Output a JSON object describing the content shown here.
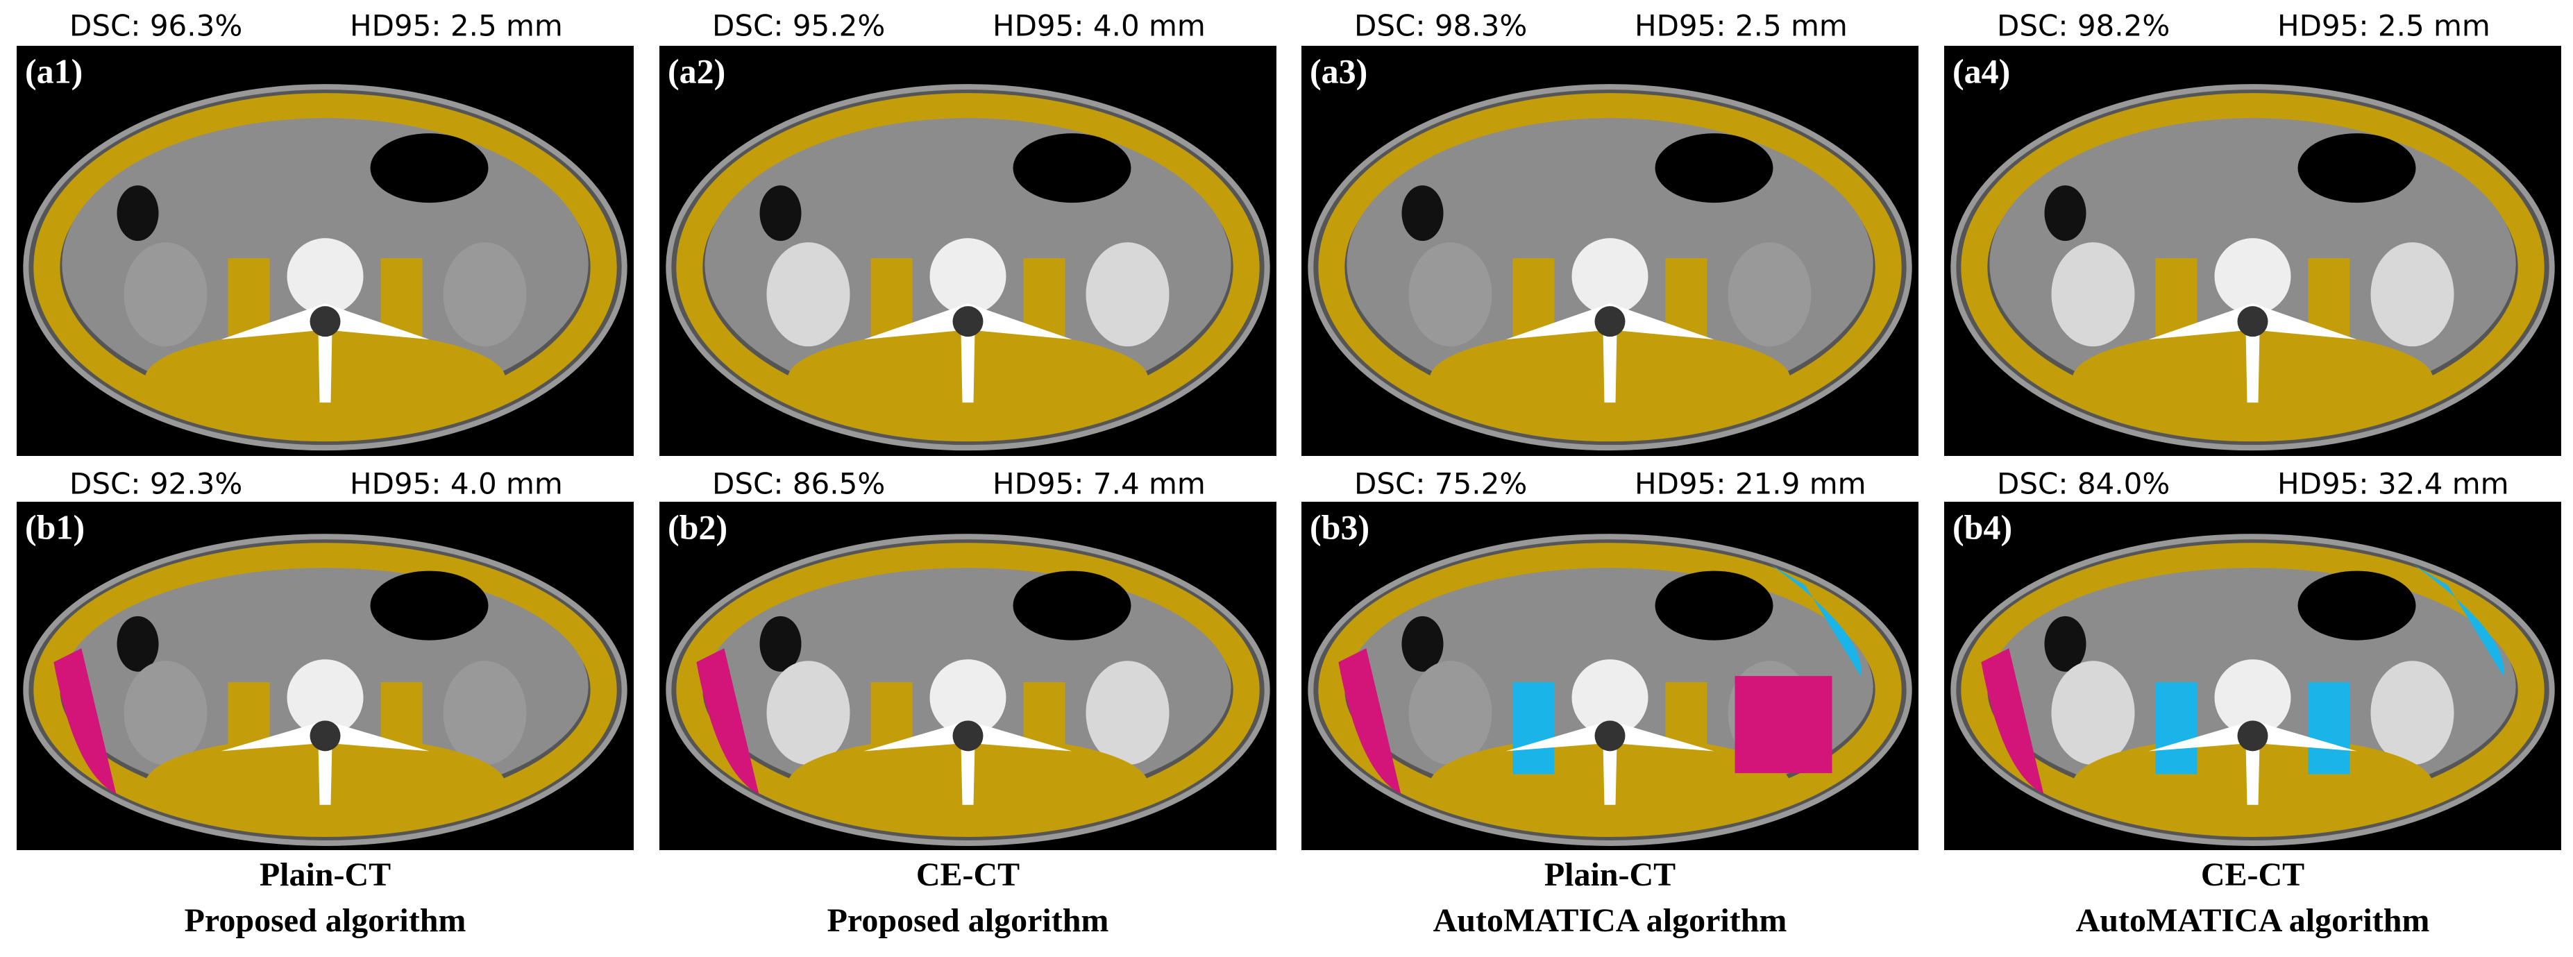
{
  "panels": [
    {
      "label": "(a1)",
      "dsc": "DSC: 96.3%",
      "hd": "HD95: 2.5 mm"
    },
    {
      "label": "(a2)",
      "dsc": "DSC: 95.2%",
      "hd": "HD95: 4.0 mm"
    },
    {
      "label": "(a3)",
      "dsc": "DSC: 98.3%",
      "hd": "HD95: 2.5 mm"
    },
    {
      "label": "(a4)",
      "dsc": "DSC: 98.2%",
      "hd": "HD95: 2.5 mm"
    },
    {
      "label": "(b1)",
      "dsc": "DSC: 92.3%",
      "hd": "HD95: 4.0 mm"
    },
    {
      "label": "(b2)",
      "dsc": "DSC: 86.5%",
      "hd": "HD95: 7.4 mm"
    },
    {
      "label": "(b3)",
      "dsc": "DSC: 75.2%",
      "hd": "HD95: 21.9 mm"
    },
    {
      "label": "(b4)",
      "dsc": "DSC: 84.0%",
      "hd": "HD95: 32.4 mm"
    }
  ],
  "captions": [
    {
      "line1": "Plain-CT",
      "line2": "Proposed algorithm"
    },
    {
      "line1": "CE-CT",
      "line2": "Proposed algorithm"
    },
    {
      "line1": "Plain-CT",
      "line2": "AutoMATICA algorithm"
    },
    {
      "line1": "CE-CT",
      "line2": "AutoMATICA algorithm"
    }
  ]
}
